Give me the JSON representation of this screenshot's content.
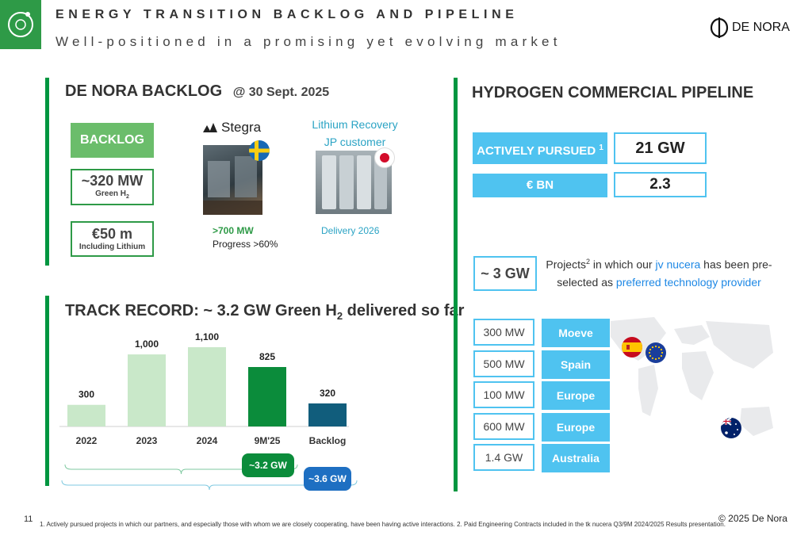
{
  "header": {
    "title": "ENERGY TRANSITION BACKLOG AND PIPELINE",
    "subtitle": "Well-positioned in a promising yet evolving market",
    "brand": "DE NORA",
    "brand_mark": "N"
  },
  "backlog": {
    "heading": "DE NORA BACKLOG",
    "date": "@ 30 Sept. 2025",
    "box_label": "BACKLOG",
    "mw_value": "~320 MW",
    "mw_sub": "Green H",
    "mw_sub_sub": "2",
    "eur_value": "€50 m",
    "eur_sub": "Including Lithium",
    "stegra_logo": "Stegra",
    "stegra_value": ">700 MW",
    "stegra_progress": "Progress >60%",
    "lithium_title_1": "Lithium Recovery",
    "lithium_title_2": "JP customer",
    "lithium_delivery": "Delivery  2026"
  },
  "track": {
    "heading_pre": "TRACK RECORD: ~ 3.2 GW Green H",
    "heading_sub": "2",
    "heading_post": " delivered so far",
    "pill_green": "~3.2 GW",
    "pill_blue": "~3.6 GW"
  },
  "chart_data": {
    "type": "bar",
    "categories": [
      "2022",
      "2023",
      "2024",
      "9M'25",
      "Backlog"
    ],
    "values": [
      300,
      1000,
      1100,
      825,
      320
    ],
    "value_labels": [
      "300",
      "1,000",
      "1,100",
      "825",
      "320"
    ],
    "colors": [
      "#c9e8c9",
      "#c9e8c9",
      "#c9e8c9",
      "#0b8c3b",
      "#115d7c"
    ],
    "ylim": [
      0,
      1100
    ]
  },
  "pipeline": {
    "heading": "HYDROGEN COMMERCIAL PIPELINE",
    "active_label": "ACTIVELY PURSUED",
    "active_sup": "1",
    "active_value": "21 GW",
    "eur_label": "€ BN",
    "eur_value": "2.3",
    "gw_box": "~ 3 GW",
    "desc_1": "Projects",
    "desc_sup": "2",
    "desc_2": " in which our ",
    "desc_highlight_1": "jv nucera",
    "desc_3": " has been pre-",
    "desc_4": "selected as ",
    "desc_highlight_2": "preferred technology provider",
    "projects": [
      {
        "mw": "300 MW",
        "name": "Moeve"
      },
      {
        "mw": "500 MW",
        "name": "Spain"
      },
      {
        "mw": "100 MW",
        "name": "Europe"
      },
      {
        "mw": "600 MW",
        "name": "Europe"
      },
      {
        "mw": "1.4 GW",
        "name": "Australia"
      }
    ]
  },
  "footer": {
    "page": "11",
    "note": "1. Actively pursued projects in which our partners, and especially those with whom we are closely cooperating, have been having active interactions. 2. Paid Engineering Contracts included in the tk nucera Q3/9M 2024/2025 Results presentation.",
    "copyright": "© 2025 De Nora"
  },
  "colors": {
    "green": "#2e9a47",
    "dark_green": "#009640",
    "light_blue": "#4fc3f0",
    "accent_blue": "#1e88e5"
  }
}
